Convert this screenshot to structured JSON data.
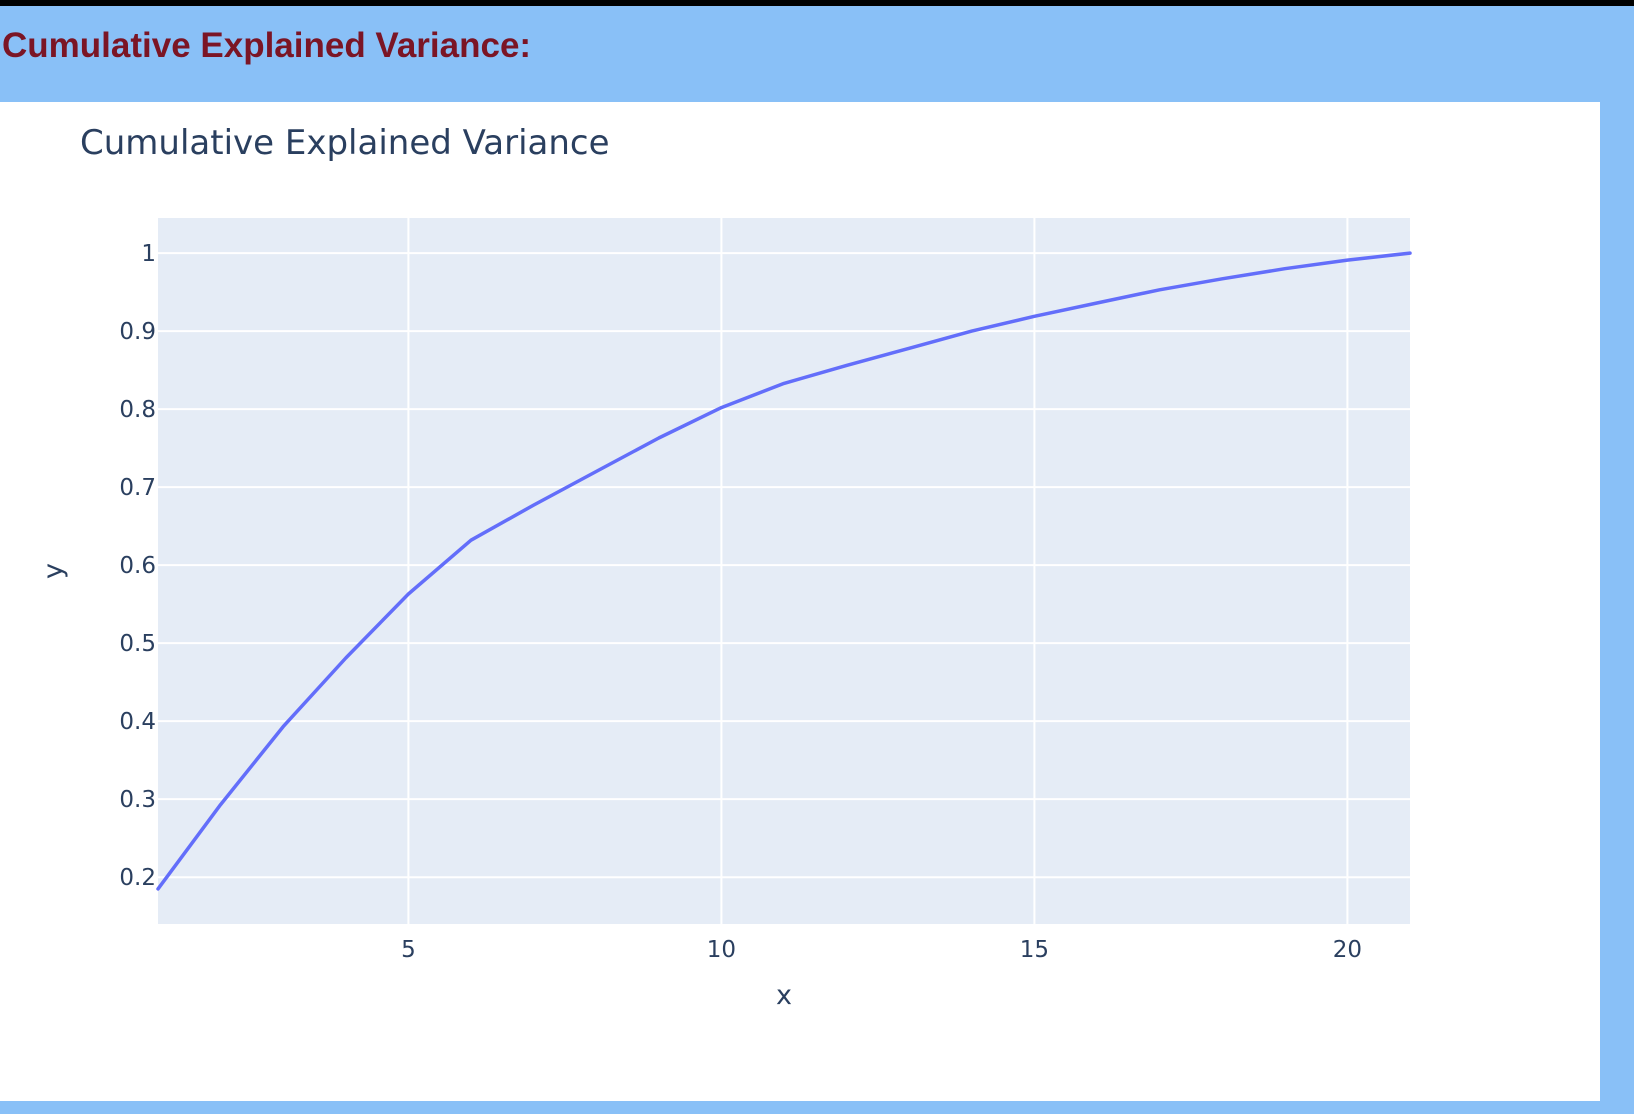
{
  "page": {
    "header_title": "Cumulative Explained Variance:",
    "header_color": "#7b1525",
    "background_color": "#89c0f7"
  },
  "chart_data": {
    "type": "line",
    "title": "Cumulative Explained Variance",
    "xlabel": "x",
    "ylabel": "y",
    "xlim": [
      1,
      21
    ],
    "ylim": [
      0.14,
      1.045
    ],
    "x_ticks": [
      5,
      10,
      15,
      20
    ],
    "y_ticks": [
      0.2,
      0.3,
      0.4,
      0.5,
      0.6,
      0.7,
      0.8,
      0.9,
      1
    ],
    "grid": true,
    "plot_background": "#e5ecf6",
    "line_color": "#636efa",
    "x": [
      1,
      2,
      3,
      4,
      5,
      6,
      7,
      8,
      9,
      10,
      11,
      12,
      13,
      14,
      15,
      16,
      17,
      18,
      19,
      20,
      21
    ],
    "series": [
      {
        "values": [
          0.185,
          0.293,
          0.393,
          0.481,
          0.563,
          0.632,
          0.677,
          0.72,
          0.763,
          0.802,
          0.833,
          0.856,
          0.878,
          0.9,
          0.919,
          0.936,
          0.953,
          0.967,
          0.98,
          0.991,
          1.0
        ]
      }
    ]
  }
}
